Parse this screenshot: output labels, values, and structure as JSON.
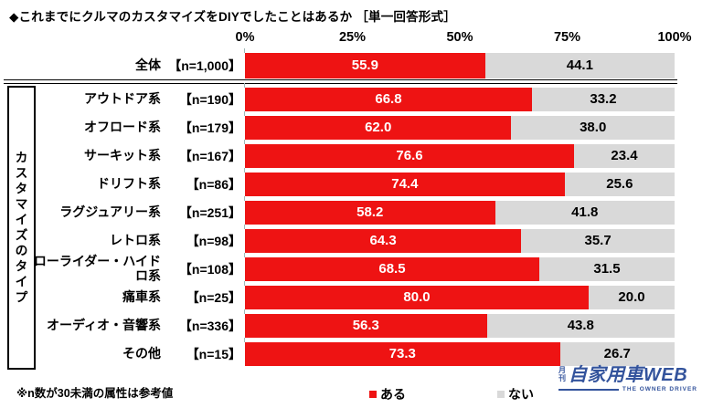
{
  "title": "◆これまでにクルマのカスタマイズをDIYでしたことはあるか ［単一回答形式］",
  "sidebar_label": "カスタマイズのタイプ",
  "footnote": "※n数が30未満の属性は参考値",
  "legend": {
    "aru": {
      "label": "ある",
      "color": "#ee1313"
    },
    "nai": {
      "label": "ない",
      "color": "#d9d9d9"
    }
  },
  "logo": {
    "small_text": "月刊",
    "main_text": "自家用車WEB",
    "tagline": "THE OWNER DRIVER",
    "color": "#33539c"
  },
  "chart_data": {
    "type": "bar",
    "orientation": "horizontal",
    "stacked": true,
    "unit": "%",
    "xlim": [
      0,
      100
    ],
    "x_ticks": [
      "0%",
      "25%",
      "50%",
      "75%",
      "100%"
    ],
    "legend_position": "bottom",
    "categories": [
      "全体",
      "アウトドア系",
      "オフロード系",
      "サーキット系",
      "ドリフト系",
      "ラグジュアリー系",
      "レトロ系",
      "ローライダー・ハイドロ系",
      "痛車系",
      "オーディオ・音響系",
      "その他"
    ],
    "n_labels": [
      "【n=1,000】",
      "【n=190】",
      "【n=179】",
      "【n=167】",
      "【n=86】",
      "【n=251】",
      "【n=98】",
      "【n=108】",
      "【n=25】",
      "【n=336】",
      "【n=15】"
    ],
    "series": [
      {
        "name": "ある",
        "color": "#ee1313",
        "values": [
          55.9,
          66.8,
          62.0,
          76.6,
          74.4,
          58.2,
          64.3,
          68.5,
          80.0,
          56.3,
          73.3
        ]
      },
      {
        "name": "ない",
        "color": "#d9d9d9",
        "values": [
          44.1,
          33.2,
          38.0,
          23.4,
          25.6,
          41.8,
          35.7,
          31.5,
          20.0,
          43.8,
          26.7
        ]
      }
    ]
  }
}
